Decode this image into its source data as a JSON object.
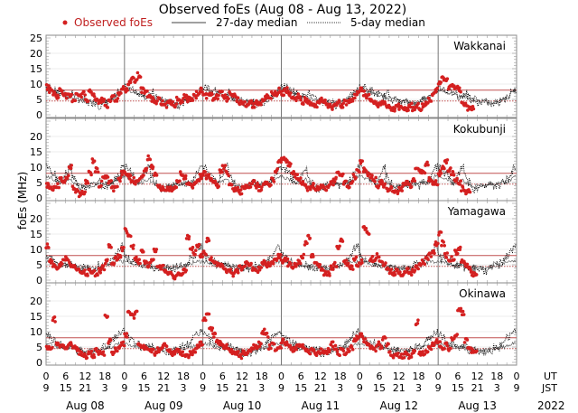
{
  "chart_data": {
    "type": "scatter",
    "title": "Observed foEs (Aug 08 - Aug 13, 2022)",
    "ylabel": "foEs (MHz)",
    "xlabel": "",
    "ylim": [
      0,
      25
    ],
    "yticks": [
      0,
      5,
      10,
      15,
      20,
      25
    ],
    "yticks_lower_panels": [
      0,
      5,
      10,
      15,
      20
    ],
    "grid": true,
    "legend": {
      "placement": "top",
      "entries": [
        {
          "label": "Observed foEs",
          "style": "red-dot",
          "color": "#d42020"
        },
        {
          "label": "27-day median",
          "style": "solid-line",
          "color": "#000000"
        },
        {
          "label": "5-day median",
          "style": "dotted-line",
          "color": "#000000"
        }
      ]
    },
    "reference_lines": {
      "solid_red_mhz": 8,
      "dotted_red_mhz": 4.5,
      "color": "#c05050"
    },
    "x_axis": {
      "ut_label": "UT",
      "jst_label": "JST",
      "year_label": "2022",
      "ut_ticks": [
        "0",
        "6",
        "12",
        "18",
        "0",
        "6",
        "12",
        "18",
        "0",
        "6",
        "12",
        "18",
        "0",
        "6",
        "12",
        "18",
        "0",
        "6",
        "12",
        "18",
        "0",
        "6",
        "12",
        "18",
        "0"
      ],
      "jst_ticks": [
        "9",
        "15",
        "21",
        "3",
        "9",
        "15",
        "21",
        "3",
        "9",
        "15",
        "21",
        "3",
        "9",
        "15",
        "21",
        "3",
        "9",
        "15",
        "21",
        "3",
        "9",
        "15",
        "21",
        "3",
        "9"
      ],
      "days": [
        "Aug 08",
        "Aug 09",
        "Aug 10",
        "Aug 11",
        "Aug 12",
        "Aug 13"
      ],
      "hours_per_day": 24,
      "n_days": 6
    },
    "panels": [
      {
        "station": "Wakkanai",
        "observed_hourly": [
          [
            9,
            8,
            7,
            6,
            8,
            7,
            6,
            6,
            5,
            7,
            6,
            7,
            5,
            8,
            6,
            5,
            4,
            5,
            3,
            4,
            6,
            5,
            7,
            9
          ],
          [
            8,
            10,
            12,
            11,
            13,
            8,
            7,
            6,
            5,
            4,
            5,
            4,
            3,
            4,
            4,
            3,
            5,
            4,
            6,
            5,
            5,
            6,
            7,
            8
          ],
          [
            7,
            6,
            7,
            5,
            6,
            8,
            6,
            5,
            7,
            6,
            5,
            4,
            4,
            3,
            4,
            3,
            4,
            4,
            5,
            6,
            5,
            7,
            7,
            8
          ],
          [
            7,
            8,
            7,
            6,
            5,
            6,
            4,
            5,
            4,
            3,
            3,
            4,
            5,
            4,
            3,
            2,
            3,
            4,
            3,
            4,
            4,
            5,
            6,
            7
          ],
          [
            8,
            7,
            6,
            5,
            4,
            3,
            4,
            4,
            3,
            2,
            2,
            3,
            2,
            2,
            2,
            3,
            2,
            3,
            2,
            3,
            4,
            5,
            7,
            8
          ],
          [
            10,
            12,
            11,
            9,
            10,
            9,
            8,
            4,
            3,
            2,
            2,
            null,
            null,
            null,
            null,
            null,
            null,
            null,
            null,
            null,
            null,
            null,
            null,
            null
          ]
        ],
        "median27_hourly": [
          8,
          8,
          7.5,
          7,
          7,
          6.5,
          6,
          6,
          5.5,
          5,
          5,
          4.5,
          4.5,
          4.5,
          4.5,
          4,
          4,
          4,
          4.5,
          5,
          5.5,
          6,
          7,
          8
        ],
        "median5_hourly": [
          9,
          9,
          8,
          8,
          7,
          7,
          6,
          6,
          7,
          6,
          5,
          5,
          4,
          4,
          4,
          4,
          3,
          4,
          4,
          5,
          5,
          6,
          7,
          8
        ]
      },
      {
        "station": "Kokubunji",
        "observed_hourly": [
          [
            4,
            3,
            3,
            4,
            6,
            5,
            7,
            10,
            3,
            2,
            1,
            2,
            5,
            8,
            12,
            9,
            4,
            6,
            7,
            5,
            3,
            4,
            6,
            8
          ],
          [
            8,
            7,
            6,
            5,
            6,
            7,
            9,
            13,
            10,
            8,
            4,
            3,
            2,
            3,
            3,
            4,
            6,
            8,
            7,
            5,
            4,
            5,
            6,
            7
          ],
          [
            8,
            7,
            6,
            5,
            4,
            9,
            10,
            8,
            4,
            3,
            3,
            2,
            3,
            4,
            4,
            5,
            4,
            3,
            4,
            5,
            4,
            6,
            9,
            12
          ],
          [
            13,
            12,
            11,
            8,
            7,
            6,
            5,
            4,
            3,
            4,
            3,
            3,
            4,
            3,
            4,
            5,
            6,
            8,
            7,
            5,
            4,
            5,
            7,
            9
          ],
          [
            12,
            9,
            8,
            7,
            6,
            4,
            5,
            4,
            3,
            3,
            2,
            2,
            3,
            4,
            5,
            4,
            6,
            10,
            9,
            8,
            11,
            6,
            5,
            5
          ],
          [
            8,
            10,
            12,
            9,
            8,
            6,
            5,
            3,
            2,
            2,
            null,
            null,
            null,
            null,
            null,
            null,
            null,
            null,
            null,
            null,
            null,
            null,
            null,
            null
          ]
        ],
        "median27_hourly": [
          7,
          6.5,
          6,
          5.5,
          5,
          5,
          5.5,
          6,
          5,
          4.5,
          4,
          4,
          4,
          4,
          4,
          4.5,
          4.5,
          4.5,
          5,
          5,
          5,
          5.5,
          6,
          7
        ],
        "median5_hourly": [
          10,
          9,
          8,
          6,
          5,
          6,
          8,
          10,
          7,
          5,
          3,
          3,
          3,
          4,
          4,
          5,
          5,
          4,
          4,
          5,
          5,
          6,
          8,
          10
        ]
      },
      {
        "station": "Yamagawa",
        "observed_hourly": [
          [
            11,
            6,
            5,
            4,
            5,
            6,
            7,
            5,
            5,
            4,
            3,
            3,
            2,
            3,
            3,
            2,
            3,
            4,
            6,
            11,
            5,
            7,
            8,
            10
          ],
          [
            16,
            14,
            11,
            7,
            6,
            9,
            6,
            5,
            6,
            10,
            5,
            4,
            3,
            2,
            2,
            1,
            2,
            2,
            3,
            14,
            10,
            9,
            11,
            8
          ],
          [
            9,
            13,
            7,
            6,
            5,
            5,
            4,
            3,
            3,
            2,
            3,
            4,
            4,
            6,
            5,
            4,
            3,
            4,
            6,
            5,
            5,
            6,
            7,
            8
          ],
          [
            6,
            7,
            5,
            4,
            5,
            6,
            8,
            12,
            14,
            8,
            6,
            5,
            3,
            2,
            2,
            4,
            5,
            11,
            13,
            6,
            5,
            4,
            7,
            5
          ],
          [
            6,
            17,
            15,
            7,
            6,
            8,
            6,
            5,
            4,
            3,
            2,
            3,
            2,
            2,
            3,
            2,
            3,
            4,
            5,
            6,
            7,
            8,
            9,
            12
          ],
          [
            15,
            12,
            8,
            6,
            7,
            9,
            10,
            6,
            5,
            4,
            2,
            2,
            null,
            null,
            null,
            null,
            null,
            null,
            null,
            null,
            null,
            null,
            null,
            null
          ]
        ],
        "median27_hourly": [
          6,
          6,
          5.5,
          5,
          5,
          5,
          5,
          5,
          4.5,
          4.5,
          4.5,
          4,
          4,
          4,
          4,
          4,
          4,
          4.5,
          5,
          5,
          5.5,
          6,
          6,
          6
        ],
        "median5_hourly": [
          8,
          7,
          6,
          6,
          5,
          5,
          5,
          5,
          4,
          4,
          4,
          4,
          4,
          4,
          3,
          4,
          5,
          5,
          5,
          6,
          7,
          8,
          10,
          11
        ]
      },
      {
        "station": "Okinawa",
        "observed_hourly": [
          [
            5,
            5,
            14,
            6,
            5,
            5,
            5,
            6,
            5,
            4,
            3,
            2,
            2,
            3,
            2,
            4,
            3,
            3,
            15,
            7,
            3,
            4,
            5,
            6
          ],
          [
            9,
            16,
            15,
            16,
            6,
            5,
            5,
            4,
            4,
            3,
            4,
            5,
            6,
            4,
            3,
            3,
            4,
            3,
            2,
            2,
            3,
            4,
            5,
            6
          ],
          [
            14,
            16,
            11,
            9,
            7,
            6,
            5,
            5,
            4,
            3,
            3,
            2,
            3,
            3,
            4,
            5,
            5,
            6,
            10,
            9,
            5,
            6,
            4,
            5
          ],
          [
            7,
            6,
            5,
            4,
            5,
            6,
            5,
            4,
            3,
            4,
            3,
            3,
            4,
            3,
            4,
            6,
            5,
            3,
            4,
            3,
            4,
            5,
            7,
            8
          ],
          [
            9,
            7,
            6,
            5,
            4,
            6,
            5,
            8,
            6,
            3,
            2,
            3,
            2,
            2,
            3,
            2,
            3,
            13,
            3,
            3,
            4,
            5,
            6,
            7
          ],
          [
            6,
            5,
            6,
            4,
            8,
            9,
            17,
            16,
            7,
            5,
            4,
            3,
            null,
            null,
            null,
            null,
            null,
            null,
            null,
            null,
            null,
            null,
            null,
            null
          ]
        ],
        "median27_hourly": [
          6,
          6,
          5.5,
          5,
          5,
          5,
          5,
          5,
          4.5,
          4.5,
          4.5,
          4,
          4,
          4,
          4,
          4,
          4,
          4.5,
          4.5,
          5,
          5,
          5.5,
          6,
          6
        ],
        "median5_hourly": [
          9,
          8,
          7,
          6,
          6,
          5,
          5,
          5,
          5,
          4,
          4,
          4,
          3,
          3,
          3,
          4,
          4,
          5,
          5,
          6,
          7,
          8,
          9,
          10
        ]
      }
    ]
  }
}
